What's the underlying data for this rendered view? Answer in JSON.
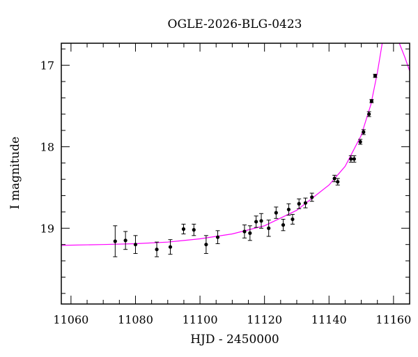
{
  "chart_data": {
    "type": "scatter",
    "title": "OGLE-2026-BLG-0423",
    "xlabel": "HJD - 2450000",
    "ylabel": "I magnitude",
    "xlim": [
      11057,
      11165
    ],
    "ylim": [
      19.93,
      16.73
    ],
    "y_inverted": true,
    "x_major_ticks": [
      11060,
      11080,
      11100,
      11120,
      11140,
      11160
    ],
    "x_tick_labels": [
      "11060",
      "11080",
      "11100",
      "11120",
      "11140",
      "11160"
    ],
    "y_major_ticks": [
      17,
      18,
      19
    ],
    "y_tick_labels": [
      "17",
      "18",
      "19"
    ],
    "grid": false,
    "legend": "none",
    "colors": {
      "points": "#000000",
      "model": "#ff00ff"
    },
    "series": [
      {
        "points": [
          {
            "x": 11073.7,
            "y": 19.16,
            "err": 0.19
          },
          {
            "x": 11076.9,
            "y": 19.15,
            "err": 0.11
          },
          {
            "x": 11080.0,
            "y": 19.2,
            "err": 0.11
          },
          {
            "x": 11086.6,
            "y": 19.26,
            "err": 0.09
          },
          {
            "x": 11090.8,
            "y": 19.23,
            "err": 0.09
          },
          {
            "x": 11094.9,
            "y": 19.01,
            "err": 0.06
          },
          {
            "x": 11098.1,
            "y": 19.02,
            "err": 0.07
          },
          {
            "x": 11101.9,
            "y": 19.2,
            "err": 0.11
          },
          {
            "x": 11105.5,
            "y": 19.11,
            "err": 0.08
          },
          {
            "x": 11113.8,
            "y": 19.04,
            "err": 0.08
          },
          {
            "x": 11115.5,
            "y": 19.06,
            "err": 0.09
          },
          {
            "x": 11117.4,
            "y": 18.92,
            "err": 0.07
          },
          {
            "x": 11119.0,
            "y": 18.91,
            "err": 0.09
          },
          {
            "x": 11121.3,
            "y": 19.0,
            "err": 0.1
          },
          {
            "x": 11123.6,
            "y": 18.81,
            "err": 0.07
          },
          {
            "x": 11125.8,
            "y": 18.96,
            "err": 0.07
          },
          {
            "x": 11127.5,
            "y": 18.77,
            "err": 0.07
          },
          {
            "x": 11128.7,
            "y": 18.89,
            "err": 0.06
          },
          {
            "x": 11130.7,
            "y": 18.7,
            "err": 0.06
          },
          {
            "x": 11132.7,
            "y": 18.69,
            "err": 0.06
          },
          {
            "x": 11134.7,
            "y": 18.62,
            "err": 0.05
          },
          {
            "x": 11141.7,
            "y": 18.39,
            "err": 0.04
          },
          {
            "x": 11142.7,
            "y": 18.43,
            "err": 0.04
          },
          {
            "x": 11146.8,
            "y": 18.15,
            "err": 0.04
          },
          {
            "x": 11147.8,
            "y": 18.15,
            "err": 0.04
          },
          {
            "x": 11149.7,
            "y": 17.94,
            "err": 0.03
          },
          {
            "x": 11150.7,
            "y": 17.82,
            "err": 0.03
          },
          {
            "x": 11152.4,
            "y": 17.6,
            "err": 0.03
          },
          {
            "x": 11153.2,
            "y": 17.44,
            "err": 0.02
          },
          {
            "x": 11154.3,
            "y": 17.13,
            "err": 0.02
          }
        ]
      }
    ],
    "model": {
      "type": "line",
      "curve": [
        [
          11057,
          19.21
        ],
        [
          11070,
          19.2
        ],
        [
          11080,
          19.19
        ],
        [
          11090,
          19.17
        ],
        [
          11100,
          19.13
        ],
        [
          11110,
          19.07
        ],
        [
          11120,
          18.97
        ],
        [
          11130,
          18.78
        ],
        [
          11140,
          18.47
        ],
        [
          11145,
          18.24
        ],
        [
          11150,
          17.86
        ],
        [
          11153,
          17.48
        ],
        [
          11155,
          17.09
        ],
        [
          11156.5,
          16.73
        ]
      ],
      "curve_right": [
        [
          11161.8,
          16.73
        ],
        [
          11163.5,
          16.9
        ],
        [
          11165,
          17.07
        ]
      ]
    }
  }
}
